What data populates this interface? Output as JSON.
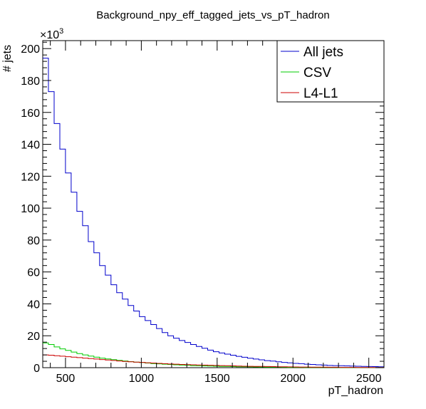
{
  "chart_data": {
    "type": "line",
    "title": "Background_npy_eff_tagged_jets_vs_pT_hadron",
    "xlabel": "pT_hadron",
    "ylabel": "# jets",
    "y_multiplier": "×10",
    "y_multiplier_exp": "3",
    "xlim": [
      350,
      2600
    ],
    "ylim": [
      0,
      205
    ],
    "x_ticks": [
      500,
      1000,
      1500,
      2000,
      2500
    ],
    "x_tick_labels": [
      "500",
      "1000",
      "1500",
      "2000",
      "2500"
    ],
    "y_ticks": [
      0,
      20,
      40,
      60,
      80,
      100,
      120,
      140,
      160,
      180,
      200
    ],
    "y_tick_labels": [
      "0",
      "20",
      "40",
      "60",
      "80",
      "100",
      "120",
      "140",
      "160",
      "180",
      "200"
    ],
    "bin_width": 37.5,
    "legend_position": "top-right",
    "series": [
      {
        "name": "All jets",
        "color": "#0000cc",
        "values": [
          194,
          173,
          153,
          137,
          122,
          110,
          98,
          89,
          79,
          72,
          64,
          58,
          52,
          47,
          43,
          39,
          35.5,
          32,
          29.5,
          27,
          24.5,
          22,
          20,
          18.5,
          17,
          15.8,
          14.5,
          13.3,
          12.2,
          11,
          10,
          9.2,
          8.5,
          7.8,
          7.1,
          6.5,
          5.9,
          5.4,
          4.9,
          4.4,
          4.1,
          3.7,
          3.3,
          3,
          2.7,
          2.5,
          2.2,
          2,
          1.8,
          1.6,
          1.4,
          1.3,
          1.2,
          1.1,
          1.0,
          0.9,
          0.8,
          0.7,
          0.65,
          0.6
        ]
      },
      {
        "name": "CSV",
        "color": "#00cc00",
        "values": [
          15.5,
          14.5,
          13,
          11.8,
          10.8,
          9.8,
          8.8,
          8,
          7.3,
          6.6,
          6,
          5.5,
          5,
          4.6,
          4.2,
          3.8,
          3.5,
          3.2,
          2.9,
          2.6,
          2.4,
          2.2,
          2.0,
          1.8,
          1.6,
          1.5,
          1.3,
          1.2,
          1.1,
          1.0,
          0.9,
          0.8,
          0.75,
          0.7,
          0.6,
          0.55,
          0.5,
          0.45,
          0.4,
          0.35,
          0.3,
          0.3,
          0.25,
          0.2,
          0.2,
          0.2,
          0.15,
          0.15,
          0.1,
          0.1,
          0.1,
          0.1,
          0.05,
          0.05,
          0.05,
          0.05,
          0.05,
          0.05,
          0.05,
          0.05
        ]
      },
      {
        "name": "L4-L1",
        "color": "#cc0000",
        "values": [
          8,
          7.8,
          7.5,
          7.2,
          6.9,
          6.6,
          6.3,
          6,
          5.7,
          5.4,
          5.1,
          4.8,
          4.5,
          4.2,
          3.9,
          3.7,
          3.5,
          3.3,
          3.1,
          2.9,
          2.7,
          2.5,
          2.3,
          2.2,
          2.0,
          1.9,
          1.8,
          1.7,
          1.6,
          1.5,
          1.4,
          1.3,
          1.2,
          1.1,
          1.0,
          0.9,
          0.85,
          0.8,
          0.75,
          0.7,
          0.65,
          0.6,
          0.55,
          0.5,
          0.45,
          0.4,
          0.4,
          0.35,
          0.3,
          0.3,
          0.25,
          0.25,
          0.2,
          0.2,
          0.2,
          0.15,
          0.15,
          0.15,
          0.1,
          0.1
        ]
      }
    ]
  }
}
